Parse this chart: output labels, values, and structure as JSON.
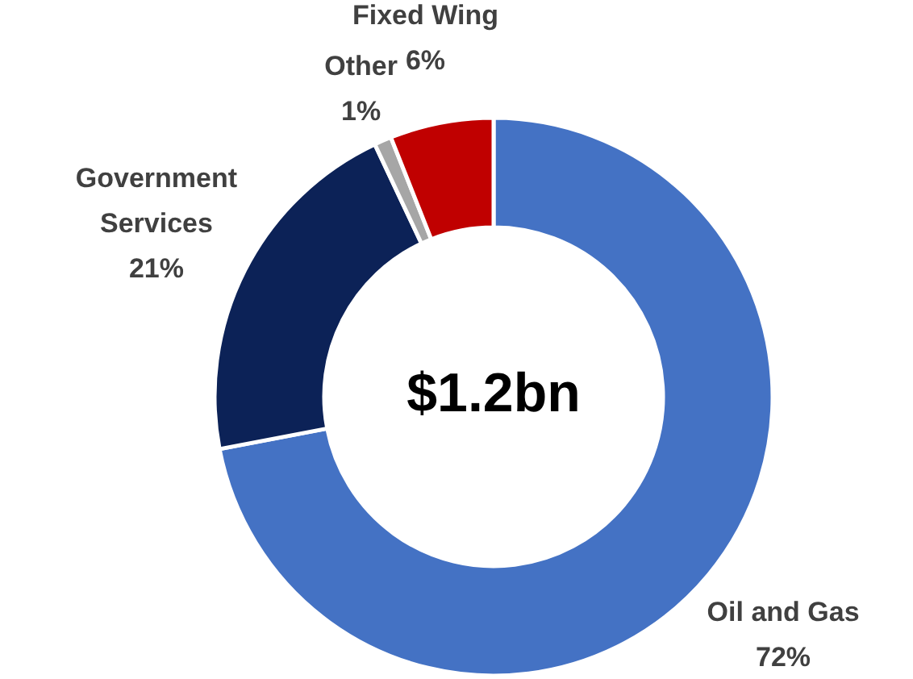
{
  "chart_data": {
    "type": "donut",
    "categories": [
      "Oil and Gas",
      "Government Services",
      "Other",
      "Fixed Wing"
    ],
    "values": [
      72,
      21,
      1,
      6
    ],
    "colors": [
      "#4472c4",
      "#0c2257",
      "#a6a6a6",
      "#c00000"
    ],
    "value_labels": [
      "72%",
      "21%",
      "1%",
      "6%"
    ],
    "annotations": [
      "$1.2bn"
    ]
  }
}
